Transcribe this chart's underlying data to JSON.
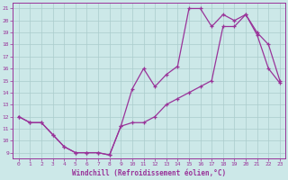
{
  "xlabel": "Windchill (Refroidissement éolien,°C)",
  "xlim": [
    -0.5,
    23.5
  ],
  "ylim": [
    8.5,
    21.5
  ],
  "xticks": [
    0,
    1,
    2,
    3,
    4,
    5,
    6,
    7,
    8,
    9,
    10,
    11,
    12,
    13,
    14,
    15,
    16,
    17,
    18,
    19,
    20,
    21,
    22,
    23
  ],
  "yticks": [
    9,
    10,
    11,
    12,
    13,
    14,
    15,
    16,
    17,
    18,
    19,
    20,
    21
  ],
  "bg_color": "#cce8e8",
  "line_color": "#993399",
  "grid_color": "#aacccc",
  "line1_x": [
    0,
    1,
    2,
    3,
    4,
    5,
    6,
    7,
    8,
    9,
    10,
    11,
    12,
    13,
    14,
    15,
    16,
    17,
    18,
    19,
    20,
    21,
    22,
    23
  ],
  "line1_y": [
    12,
    11.5,
    11.5,
    10.5,
    9.5,
    9.0,
    9.0,
    9.0,
    8.8,
    11.2,
    14.3,
    16.0,
    14.5,
    15.5,
    16.2,
    21.0,
    21.0,
    19.5,
    20.5,
    20.0,
    20.5,
    19.0,
    18.0,
    15.0
  ],
  "line2_x": [
    0,
    1,
    2,
    3,
    4,
    5,
    6,
    7,
    8,
    9,
    10,
    11,
    12,
    13,
    14,
    15,
    16,
    17,
    18,
    19,
    20,
    21,
    22,
    23
  ],
  "line2_y": [
    12,
    11.5,
    11.5,
    10.5,
    9.5,
    9.0,
    9.0,
    9.0,
    8.8,
    11.2,
    11.5,
    11.5,
    12.0,
    13.0,
    13.5,
    14.0,
    14.5,
    15.0,
    19.5,
    19.5,
    20.5,
    18.8,
    16.0,
    14.8
  ]
}
